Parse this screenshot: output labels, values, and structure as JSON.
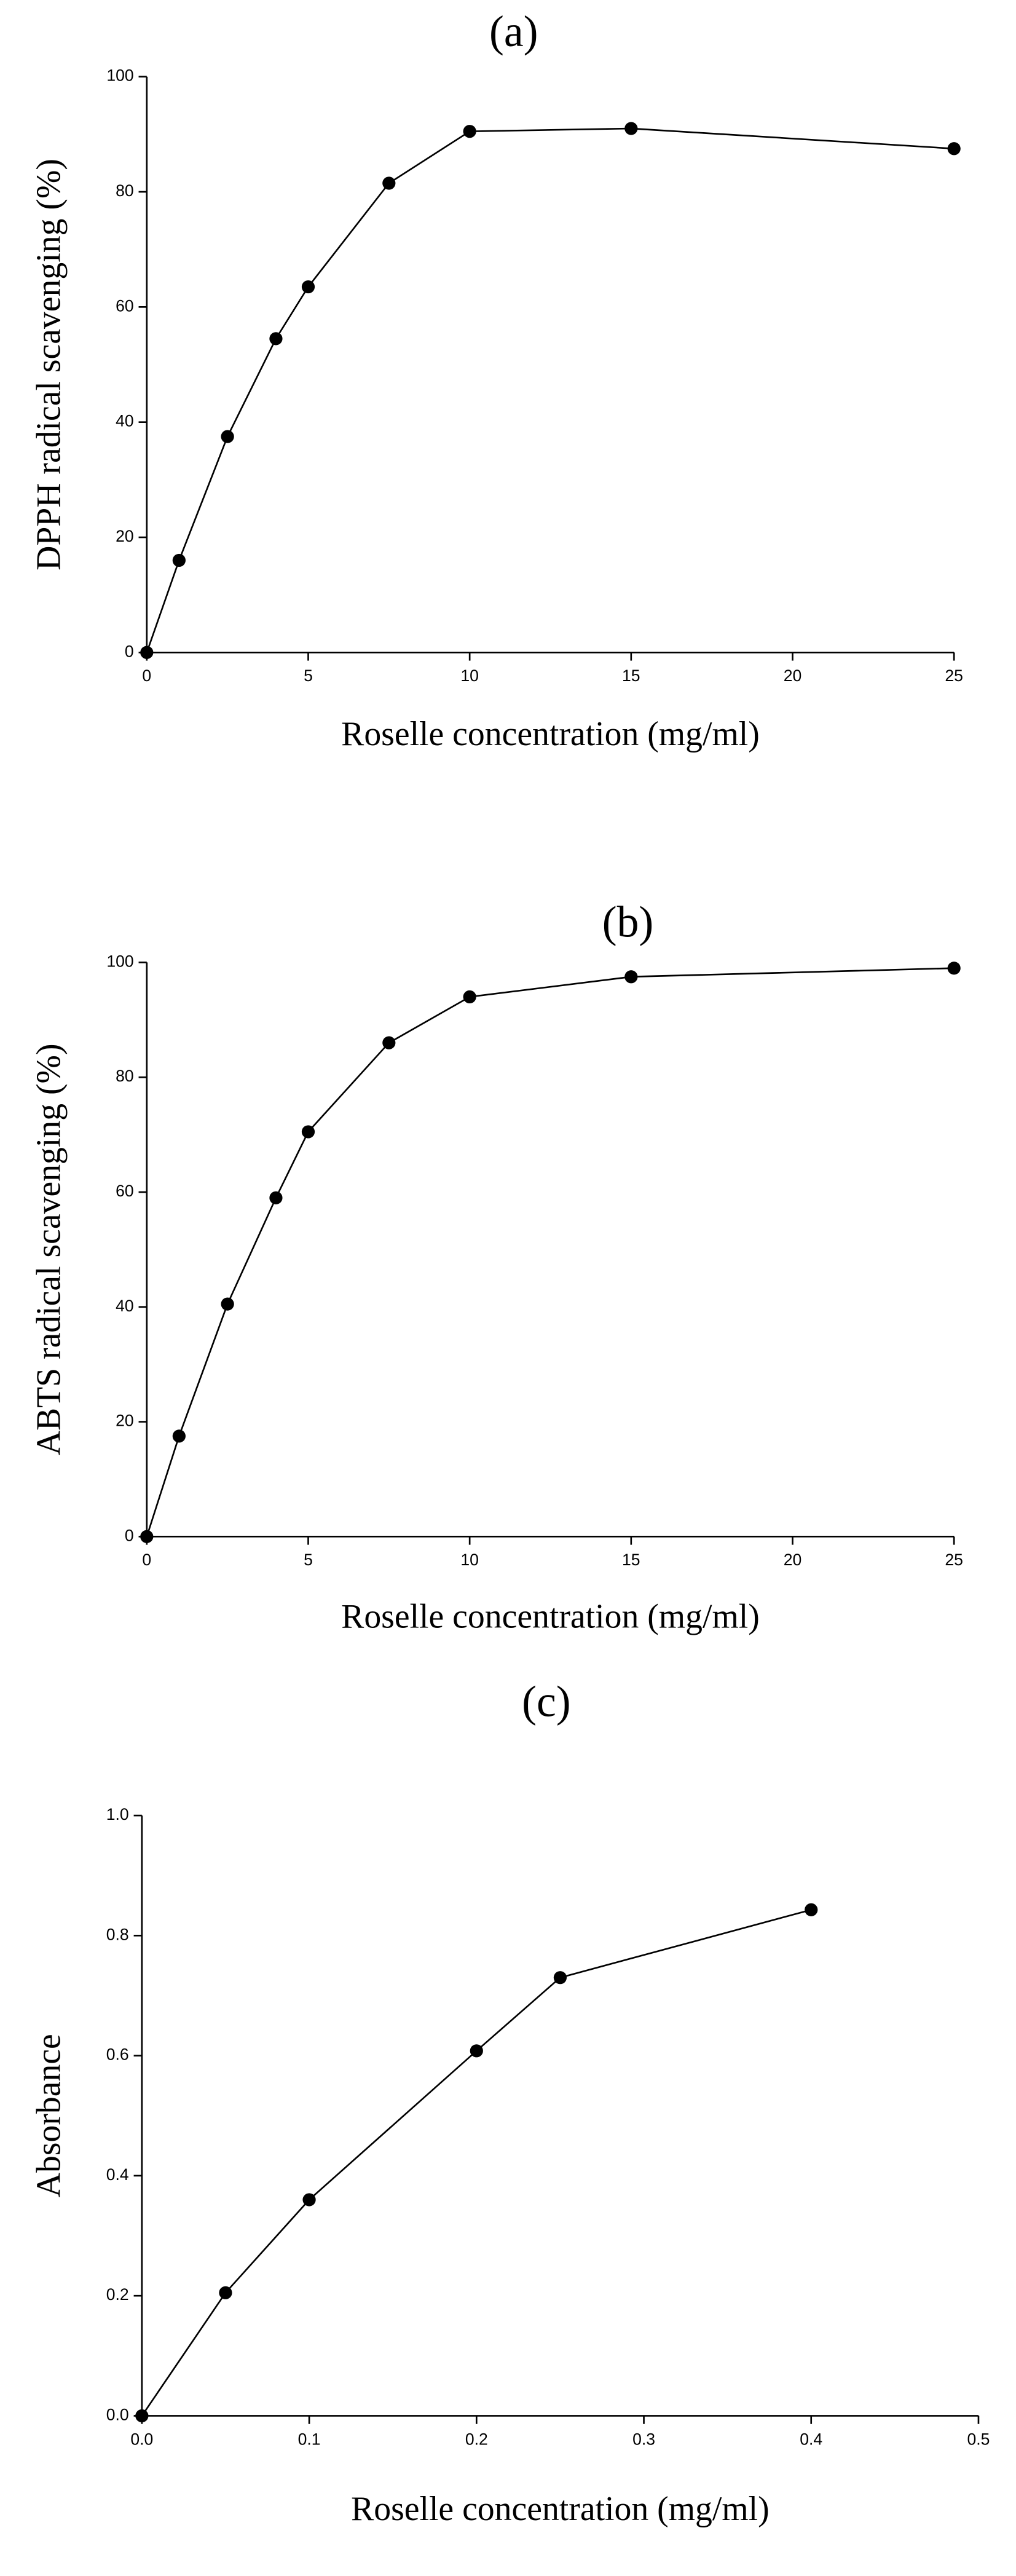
{
  "chart_data": [
    {
      "type": "line",
      "title": "(a)",
      "xlabel": "Roselle concentration (mg/ml)",
      "ylabel": "DPPH radical scavenging (%)",
      "x": [
        0,
        1,
        2.5,
        4,
        5,
        7.5,
        10,
        15,
        25
      ],
      "values": [
        0,
        16,
        37.5,
        54.5,
        63.5,
        81.5,
        90.5,
        91,
        87.5
      ],
      "color": "#000000",
      "xlim": [
        0,
        25
      ],
      "xticks": [
        0,
        5,
        10,
        15,
        20,
        25
      ],
      "ylim": [
        0,
        100
      ],
      "yticks": [
        0,
        20,
        40,
        60,
        80,
        100
      ]
    },
    {
      "type": "line",
      "title": "(b)",
      "xlabel": "Roselle concentration (mg/ml)",
      "ylabel": "ABTS radical scavenging (%)",
      "x": [
        0,
        1,
        2.5,
        4,
        5,
        7.5,
        10,
        15,
        25
      ],
      "values": [
        0,
        17.5,
        40.5,
        59,
        70.5,
        86,
        94,
        97.5,
        99
      ],
      "color": "#000000",
      "xlim": [
        0,
        25
      ],
      "xticks": [
        0,
        5,
        10,
        15,
        20,
        25
      ],
      "ylim": [
        0,
        100
      ],
      "yticks": [
        0,
        20,
        40,
        60,
        80,
        100
      ]
    },
    {
      "type": "line",
      "title": "(c)",
      "xlabel": "Roselle concentration (mg/ml)",
      "ylabel": "Absorbance",
      "x": [
        0,
        0.05,
        0.1,
        0.2,
        0.25,
        0.4
      ],
      "values": [
        0,
        0.205,
        0.36,
        0.608,
        0.73,
        0.843
      ],
      "color": "#000000",
      "xlim": [
        0,
        0.5
      ],
      "xticks": [
        {
          "value": 0,
          "label": "0.0"
        },
        0.1,
        0.2,
        0.3,
        0.4,
        0.5
      ],
      "ylim": [
        0,
        1
      ],
      "yticks": [
        {
          "value": 0,
          "label": "0.0"
        },
        0.2,
        0.4,
        0.6,
        0.8,
        {
          "value": 1,
          "label": "1.0"
        }
      ]
    }
  ]
}
